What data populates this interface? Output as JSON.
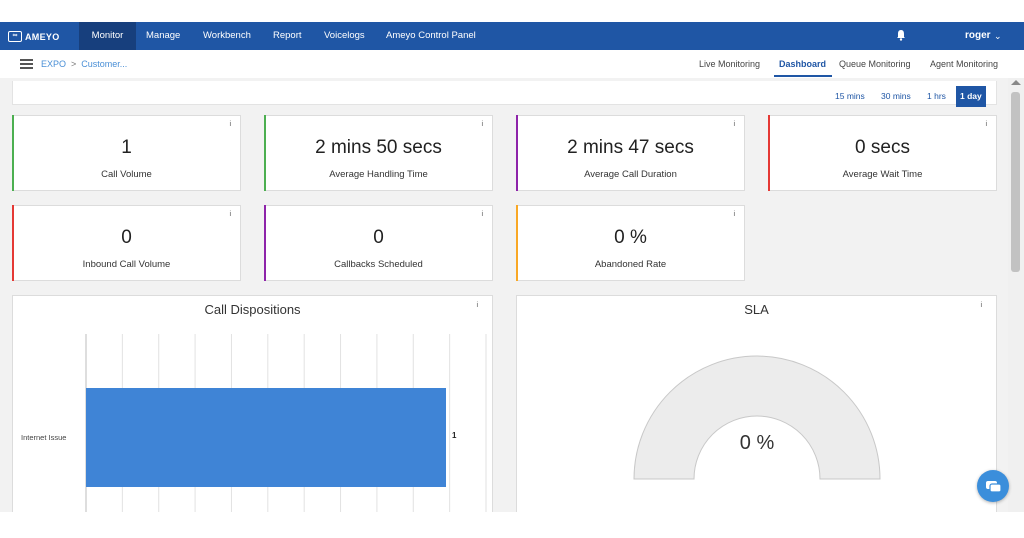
{
  "app": {
    "logo_mark": "∞",
    "logo_text": "AMEYO"
  },
  "topnav": {
    "items": [
      {
        "label": "Monitor",
        "active": true
      },
      {
        "label": "Manage"
      },
      {
        "label": "Workbench"
      },
      {
        "label": "Report"
      },
      {
        "label": "Voicelogs"
      },
      {
        "label": "Ameyo Control Panel"
      }
    ],
    "user": "roger",
    "user_caret": "⌄",
    "bell_icon": "bell-icon"
  },
  "breadcrumb": {
    "items": [
      "EXPO",
      "Customer..."
    ],
    "separator": ">"
  },
  "subtabs": [
    {
      "label": "Live Monitoring"
    },
    {
      "label": "Dashboard",
      "active": true
    },
    {
      "label": "Queue Monitoring"
    },
    {
      "label": "Agent Monitoring"
    }
  ],
  "time_range": {
    "options": [
      "15 mins",
      "30 mins",
      "1 hrs",
      "1 day"
    ],
    "selected": "1 day"
  },
  "cards": [
    {
      "value": "1",
      "label": "Call Volume",
      "accent": "#4caf50"
    },
    {
      "value": "2 mins 50 secs",
      "label": "Average Handling Time",
      "accent": "#4caf50"
    },
    {
      "value": "2 mins 47 secs",
      "label": "Average Call Duration",
      "accent": "#8e24aa"
    },
    {
      "value": "0 secs",
      "label": "Average Wait Time",
      "accent": "#e53935"
    },
    {
      "value": "0",
      "label": "Inbound Call Volume",
      "accent": "#e53935"
    },
    {
      "value": "0",
      "label": "Callbacks Scheduled",
      "accent": "#8e24aa"
    },
    {
      "value": "0 %",
      "label": "Abandoned Rate",
      "accent": "#f9a825"
    }
  ],
  "info_glyph": "i",
  "dispositions": {
    "title": "Call Dispositions",
    "chart_data": {
      "type": "bar",
      "orientation": "horizontal",
      "categories": [
        "Internet Issue"
      ],
      "values": [
        1
      ],
      "data_labels": [
        "1"
      ],
      "bar_color": "#3f84d6",
      "grid": true
    }
  },
  "sla": {
    "title": "SLA",
    "value_text": "0 %",
    "value": 0
  },
  "colors": {
    "nav": "#1f56a5",
    "nav_active": "#173f7d",
    "accent": "#1f56a5"
  }
}
